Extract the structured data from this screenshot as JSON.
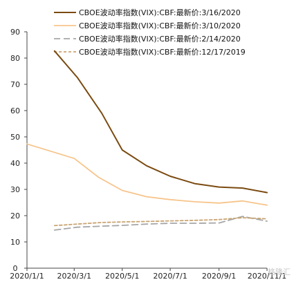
{
  "chart_data": {
    "type": "line",
    "title": "",
    "xlabel": "",
    "ylabel": "",
    "x_tick_labels": [
      "2020/1/1",
      "2020/3/1",
      "2020/5/1",
      "2020/7/1",
      "2020/9/1",
      "2020/11/1"
    ],
    "ylim": [
      0,
      90
    ],
    "y_ticks": [
      0,
      10,
      20,
      30,
      40,
      50,
      60,
      70,
      80,
      90
    ],
    "grid": false,
    "legend_placement": "top",
    "series": [
      {
        "name": "CBOE波动率指数(VIX):CBF:最新价:3/16/2020",
        "color": "#7a4a10",
        "dash": "solid",
        "points": [
          {
            "x": "2020-02-05",
            "y": 82.7
          },
          {
            "x": "2020-03-05",
            "y": 72.6
          },
          {
            "x": "2020-04-05",
            "y": 59.0
          },
          {
            "x": "2020-05-01",
            "y": 45.0
          },
          {
            "x": "2020-06-01",
            "y": 39.0
          },
          {
            "x": "2020-07-01",
            "y": 35.0
          },
          {
            "x": "2020-08-01",
            "y": 32.2
          },
          {
            "x": "2020-09-01",
            "y": 30.9
          },
          {
            "x": "2020-10-01",
            "y": 30.5
          },
          {
            "x": "2020-11-01",
            "y": 28.8
          }
        ]
      },
      {
        "name": "CBOE波动率指数(VIX):CBF:最新价:3/10/2020",
        "color": "#f7c48a",
        "dash": "solid",
        "points": [
          {
            "x": "2020-01-01",
            "y": 47.3
          },
          {
            "x": "2020-03-01",
            "y": 41.8
          },
          {
            "x": "2020-04-01",
            "y": 34.6
          },
          {
            "x": "2020-05-01",
            "y": 29.6
          },
          {
            "x": "2020-06-01",
            "y": 27.2
          },
          {
            "x": "2020-07-01",
            "y": 26.1
          },
          {
            "x": "2020-08-01",
            "y": 25.3
          },
          {
            "x": "2020-09-01",
            "y": 24.8
          },
          {
            "x": "2020-10-01",
            "y": 25.6
          },
          {
            "x": "2020-11-01",
            "y": 24.0
          }
        ]
      },
      {
        "name": "CBOE波动率指数(VIX):CBF:最新价:2/14/2020",
        "color": "#a6a6a6",
        "dash": "long-dash",
        "points": [
          {
            "x": "2020-02-05",
            "y": 14.5
          },
          {
            "x": "2020-03-05",
            "y": 15.6
          },
          {
            "x": "2020-04-05",
            "y": 16.0
          },
          {
            "x": "2020-05-01",
            "y": 16.3
          },
          {
            "x": "2020-06-01",
            "y": 16.8
          },
          {
            "x": "2020-07-01",
            "y": 17.1
          },
          {
            "x": "2020-08-01",
            "y": 17.1
          },
          {
            "x": "2020-09-01",
            "y": 17.2
          },
          {
            "x": "2020-10-01",
            "y": 19.7
          },
          {
            "x": "2020-11-01",
            "y": 17.9
          }
        ]
      },
      {
        "name": "CBOE波动率指数(VIX):CBF:最新价:12/17/2019",
        "color": "#c9a471",
        "dash": "short-dash",
        "points": [
          {
            "x": "2020-02-05",
            "y": 16.2
          },
          {
            "x": "2020-03-05",
            "y": 16.8
          },
          {
            "x": "2020-04-05",
            "y": 17.4
          },
          {
            "x": "2020-05-01",
            "y": 17.6
          },
          {
            "x": "2020-06-01",
            "y": 17.8
          },
          {
            "x": "2020-07-01",
            "y": 18.0
          },
          {
            "x": "2020-08-01",
            "y": 18.2
          },
          {
            "x": "2020-09-01",
            "y": 18.5
          },
          {
            "x": "2020-10-01",
            "y": 19.2
          },
          {
            "x": "2020-11-01",
            "y": 18.8
          }
        ]
      }
    ]
  },
  "watermark": {
    "text": "格隆汇"
  }
}
